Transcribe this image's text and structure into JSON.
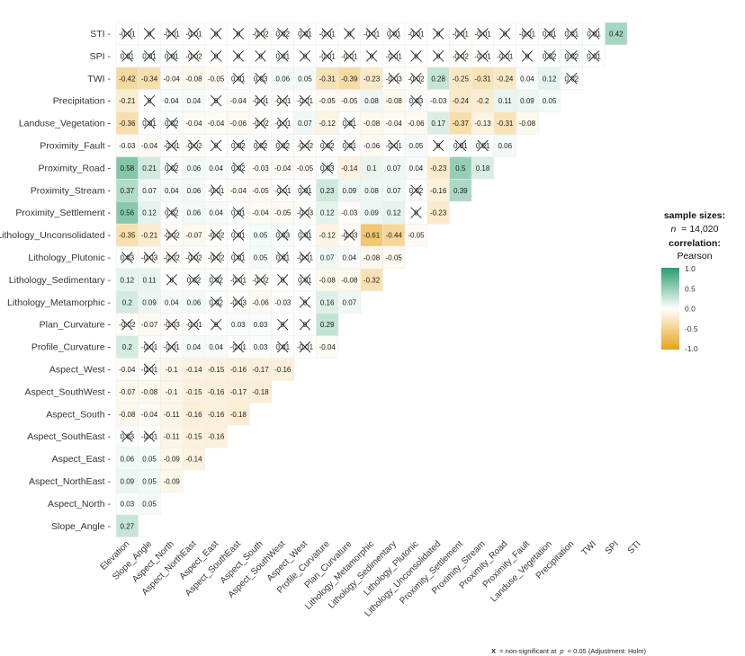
{
  "chart_data": {
    "type": "heatmap",
    "variables": [
      "Elevation",
      "Slope_Angle",
      "Aspect_North",
      "Aspect_NorthEast",
      "Aspect_East",
      "Aspect_SouthEast",
      "Aspect_South",
      "Aspect_SouthWest",
      "Aspect_West",
      "Profile_Curvature",
      "Plan_Curvature",
      "Lithology_Metamorphic",
      "Lithology_Sedimentary",
      "Lithology_Plutonic",
      "Lithology_Unconsolidated",
      "Proximity_Settlement",
      "Proximity_Stream",
      "Proximity_Road",
      "Proximity_Fault",
      "Landuse_Vegetation",
      "Precipitation",
      "TWI",
      "SPI",
      "STI"
    ],
    "rows": [
      {
        "label": "Slope_Angle",
        "values": [
          "0.27"
        ]
      },
      {
        "label": "Aspect_North",
        "values": [
          "0.03",
          "0.05"
        ]
      },
      {
        "label": "Aspect_NorthEast",
        "values": [
          "0.09",
          "0.05",
          "-0.09"
        ]
      },
      {
        "label": "Aspect_East",
        "values": [
          "0.06",
          "0.05",
          "-0.09",
          "-0.14"
        ]
      },
      {
        "label": "Aspect_SouthEast",
        "values": [
          "0.03x",
          "-0.01x",
          "-0.11",
          "-0.15",
          "-0.16"
        ]
      },
      {
        "label": "Aspect_South",
        "values": [
          "-0.08",
          "-0.04",
          "-0.11",
          "-0.16",
          "-0.16",
          "-0.18"
        ]
      },
      {
        "label": "Aspect_SouthWest",
        "values": [
          "-0.07",
          "-0.08",
          "-0.1",
          "-0.15",
          "-0.16",
          "-0.17",
          "-0.18"
        ]
      },
      {
        "label": "Aspect_West",
        "values": [
          "-0.04",
          "-0.01x",
          "-0.1",
          "-0.14",
          "-0.15",
          "-0.16",
          "-0.17",
          "-0.16"
        ]
      },
      {
        "label": "Profile_Curvature",
        "values": [
          "0.2",
          "-0.01x",
          "-0.01x",
          "0.04",
          "0.04",
          "-0.01x",
          "0.03",
          "0.01x",
          "-0.01x",
          "-0.04"
        ]
      },
      {
        "label": "Plan_Curvature",
        "values": [
          "-0.02x",
          "-0.07",
          "-0.03x",
          "-0.01x",
          "0x",
          "0.03",
          "0.03",
          "0x",
          "0x",
          "0.29"
        ]
      },
      {
        "label": "Lithology_Metamorphic",
        "values": [
          "0.2",
          "0.09",
          "0.04",
          "0.06",
          "0.02x",
          "-0.03x",
          "-0.06",
          "-0.03",
          "0x",
          "0.16",
          "0.07"
        ]
      },
      {
        "label": "Lithology_Sedimentary",
        "values": [
          "0.12",
          "0.11",
          "0x",
          "0.02x",
          "0.02x",
          "-0.01x",
          "-0.02x",
          "0x",
          "0.01x",
          "-0.08",
          "-0.08",
          "-0.32"
        ]
      },
      {
        "label": "Lithology_Plutonic",
        "values": [
          "0.03x",
          "-0.03x",
          "-0.02x",
          "-0.02x",
          "-0.02x",
          "0.01x",
          "0.05",
          "0.01x",
          "-0.01x",
          "0.07",
          "0.04",
          "-0.08",
          "-0.05"
        ]
      },
      {
        "label": "Lithology_Unconsolidated",
        "values": [
          "-0.35",
          "-0.21",
          "-0.02x",
          "-0.07",
          "-0.02x",
          "0.01x",
          "0.05",
          "0.03x",
          "0.01x",
          "-0.12",
          "-0.03x",
          "-0.61",
          "-0.44",
          "-0.05"
        ]
      },
      {
        "label": "Proximity_Settlement",
        "values": [
          "0.56",
          "0.12",
          "0.02x",
          "0.06",
          "0.04",
          "0.01x",
          "-0.04",
          "-0.05",
          "-0.03x",
          "0.12",
          "-0.03",
          "0.09",
          "0.12",
          "0x",
          "-0.23"
        ]
      },
      {
        "label": "Proximity_Stream",
        "values": [
          "0.37",
          "0.07",
          "0.04",
          "0.06",
          "-0.01x",
          "-0.04",
          "-0.05",
          "-0.01x",
          "0.01x",
          "0.23",
          "0.09",
          "0.08",
          "0.07",
          "0.02x",
          "-0.16",
          "0.39"
        ]
      },
      {
        "label": "Proximity_Road",
        "values": [
          "0.58",
          "0.21",
          "0.02x",
          "0.06",
          "0.04",
          "0.02x",
          "-0.03",
          "-0.04",
          "-0.05",
          "0.03x",
          "-0.14",
          "0.1",
          "0.07",
          "0.04",
          "-0.23",
          "0.5",
          "0.18"
        ]
      },
      {
        "label": "Proximity_Fault",
        "values": [
          "-0.03",
          "-0.04",
          "-0.01x",
          "-0.02x",
          "0x",
          "0.02x",
          "0.02x",
          "0.02x",
          "-0.02x",
          "0.02x",
          "0.01x",
          "-0.06",
          "-0.01x",
          "0.05",
          "0x",
          "0.01x",
          "0.01x",
          "0.06"
        ]
      },
      {
        "label": "Landuse_Vegetation",
        "values": [
          "-0.36",
          "0.01x",
          "0.02x",
          "-0.04",
          "-0.04",
          "-0.06",
          "-0.02x",
          "-0.01x",
          "0.07",
          "-0.12",
          "0.01x",
          "-0.08",
          "-0.04",
          "-0.06",
          "0.17",
          "-0.37",
          "-0.13",
          "-0.31",
          "-0.08"
        ]
      },
      {
        "label": "Precipitation",
        "values": [
          "-0.21",
          "0x",
          "0.04",
          "0.04",
          "0x",
          "-0.04",
          "-0.01x",
          "-0.01x",
          "-0.01x",
          "-0.05",
          "-0.05",
          "0.08",
          "-0.08",
          "0.03x",
          "-0.03",
          "-0.24",
          "-0.2",
          "0.11",
          "0.09",
          "0.05"
        ]
      },
      {
        "label": "TWI",
        "values": [
          "-0.42",
          "-0.34",
          "-0.04",
          "-0.08",
          "-0.05",
          "0.01x",
          "0.03x",
          "0.06",
          "0.05",
          "-0.31",
          "-0.39",
          "-0.23",
          "-0.03x",
          "-0.02x",
          "0.28",
          "-0.25",
          "-0.31",
          "-0.24",
          "0.04",
          "0.12",
          "0.02x"
        ]
      },
      {
        "label": "SPI",
        "values": [
          "0.01x",
          "0.01x",
          "0.01x",
          "-0.02x",
          "0x",
          "0x",
          "0x",
          "0.01x",
          "0x",
          "-0.01x",
          "-0.01x",
          "0x",
          "-0.01x",
          "0x",
          "0x",
          "-0.02x",
          "-0.01x",
          "-0.01x",
          "0x",
          "0.02x",
          "0.02x",
          "0.01x"
        ]
      },
      {
        "label": "STI",
        "values": [
          "-0.01x",
          "0x",
          "-0.01x",
          "-0.01x",
          "0x",
          "0x",
          "-0.02x",
          "0.02x",
          "0.01x",
          "-0.01x",
          "0x",
          "-0.01x",
          "0.01x",
          "-0.01x",
          "0x",
          "-0.01x",
          "-0.01x",
          "0x",
          "-0.01x",
          "0.01x",
          "0.01x",
          "0.01x",
          "0.42"
        ]
      }
    ],
    "color_scale": {
      "low": "#e8a317",
      "mid": "#ffffff",
      "high": "#2a9d6c",
      "min": -1.0,
      "max": 1.0,
      "ticks": [
        "1.0",
        "0.5",
        "0.0",
        "-0.5",
        "-1.0"
      ]
    },
    "legend": {
      "sample_title": "sample sizes:",
      "sample_n_label": "n",
      "sample_n_value": "= 14,020",
      "corr_title": "correlation:",
      "corr_method": "Pearson"
    },
    "caption": {
      "mark": "X",
      "text": "= non-significant at",
      "p": "p",
      "tail": "< 0.05 (Adjustment: Holm)"
    }
  }
}
